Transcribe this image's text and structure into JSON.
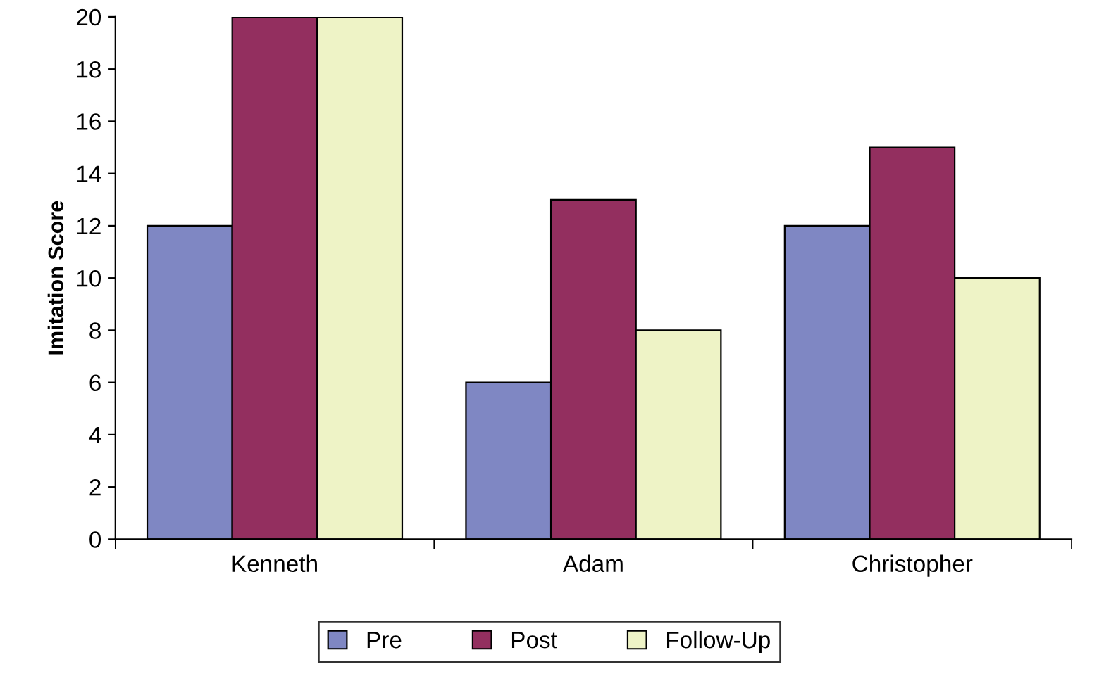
{
  "chart_data": {
    "type": "bar",
    "ylabel": "Imitation Score",
    "categories": [
      "Kenneth",
      "Adam",
      "Christopher"
    ],
    "series": [
      {
        "name": "Pre",
        "color": "#7f87c3",
        "values": [
          12,
          6,
          12
        ]
      },
      {
        "name": "Post",
        "color": "#932f5f",
        "values": [
          20,
          13,
          15
        ]
      },
      {
        "name": "Follow-Up",
        "color": "#eef3c6",
        "values": [
          20,
          8,
          10
        ]
      }
    ],
    "ylim": [
      0,
      20
    ],
    "yticks": [
      0,
      2,
      4,
      6,
      8,
      10,
      12,
      14,
      16,
      18,
      20
    ],
    "grid": false,
    "legend": "bottom"
  }
}
